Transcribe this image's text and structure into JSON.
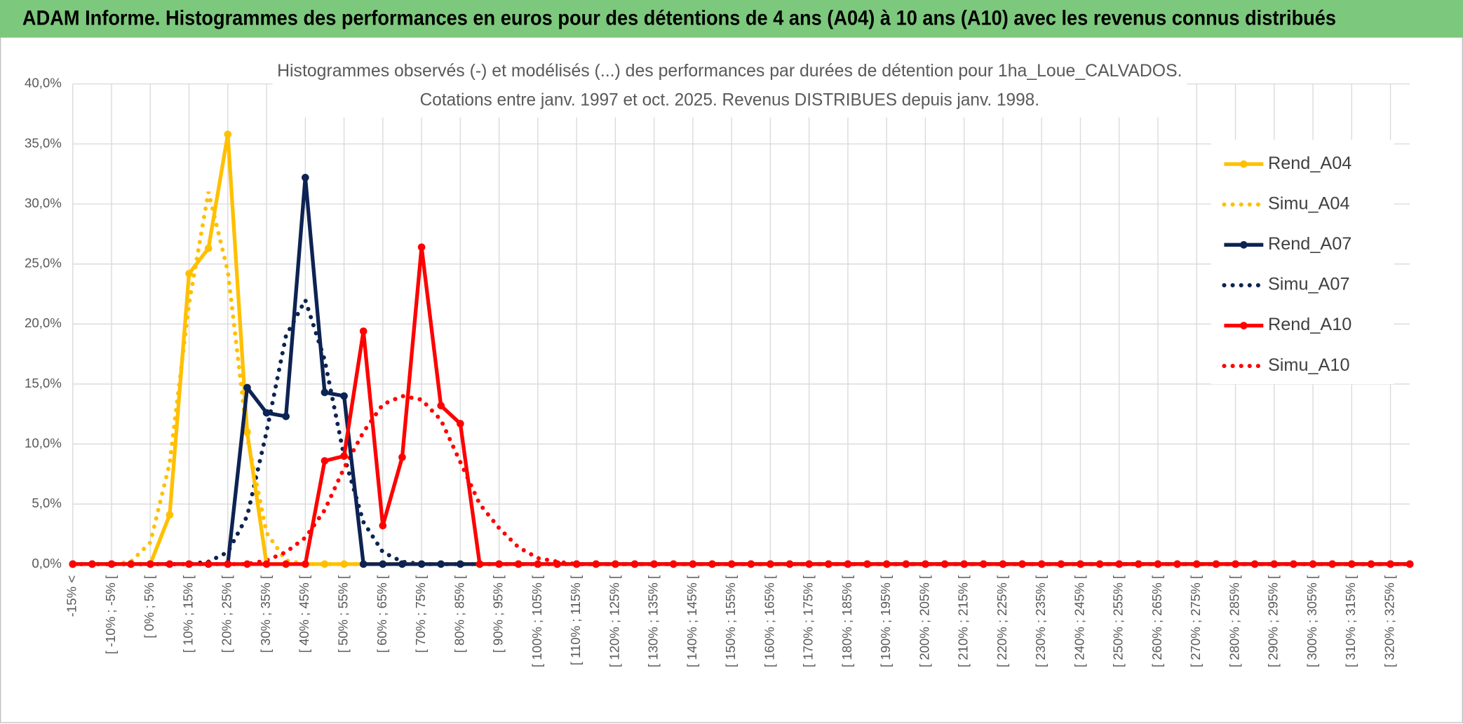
{
  "header": {
    "title": "ADAM Informe. Histogrammes des performances en euros pour des détentions de 4 ans (A04) à 10 ans (A10) avec les revenus connus distribués"
  },
  "chart_data": {
    "type": "line",
    "title": "Histogrammes observés (-) et modélisés (...) des performances par durées de détention pour 1ha_Loue_CALVADOS.",
    "subtitle": "Cotations entre janv. 1997 et oct. 2025. Revenus DISTRIBUES depuis janv. 1998.",
    "categories": [
      "-15% <",
      null,
      "[ -10% ; -5% [",
      null,
      "[ 0% ; 5% [",
      null,
      "[ 10% ; 15% [",
      null,
      "[ 20% ; 25% [",
      null,
      "[ 30% ; 35% [",
      null,
      "[ 40% ; 45% [",
      null,
      "[ 50% ; 55% [",
      null,
      "[ 60% ; 65% [",
      null,
      "[ 70% ; 75% [",
      null,
      "[ 80% ; 85% [",
      null,
      "[ 90% ; 95% [",
      null,
      "[ 100% ; 105% [",
      null,
      "[ 110% ; 115% [",
      null,
      "[ 120% ; 125% [",
      null,
      "[ 130% ; 135% [",
      null,
      "[ 140% ; 145% [",
      null,
      "[ 150% ; 155% [",
      null,
      "[ 160% ; 165% [",
      null,
      "[ 170% ; 175% [",
      null,
      "[ 180% ; 185% [",
      null,
      "[ 190% ; 195% [",
      null,
      "[ 200% ; 205% [",
      null,
      "[ 210% ; 215% [",
      null,
      "[ 220% ; 225% [",
      null,
      "[ 230% ; 235% [",
      null,
      "[ 240% ; 245% [",
      null,
      "[ 250% ; 255% [",
      null,
      "[ 260% ; 265% [",
      null,
      "[ 270% ; 275% [",
      null,
      "[ 280% ; 285% [",
      null,
      "[ 290% ; 295% [",
      null,
      "[ 300% ; 305% [",
      null,
      "[ 310% ; 315% [",
      null,
      "[ 320% ; 325% [",
      null
    ],
    "series": [
      {
        "name": "Rend_A04",
        "color": "#ffc000",
        "style": "solid",
        "markers": true,
        "values": [
          0,
          0,
          0,
          0,
          0,
          4.1,
          24.2,
          26.3,
          35.8,
          11,
          0,
          0,
          0,
          0,
          0,
          0,
          0,
          0,
          0,
          0,
          0,
          0,
          0,
          0,
          0,
          0,
          0,
          0,
          0,
          0,
          0,
          0,
          0,
          0,
          0,
          0,
          0,
          0,
          0,
          0,
          0,
          0,
          0,
          0,
          0,
          0,
          0,
          0,
          0,
          0,
          0,
          0,
          0,
          0,
          0,
          0,
          0,
          0,
          0,
          0,
          0,
          0,
          0,
          0,
          0,
          0,
          0,
          0,
          0,
          0
        ]
      },
      {
        "name": "Simu_A04",
        "color": "#ffc000",
        "style": "dotted",
        "markers": false,
        "values": [
          0,
          0,
          0,
          0.2,
          1.8,
          8.4,
          21.7,
          31,
          24.4,
          10.6,
          2.6,
          0.3,
          0,
          0,
          0,
          0,
          0,
          0,
          0,
          0,
          0,
          0,
          0,
          0,
          0,
          0,
          0,
          0,
          0,
          0,
          0,
          0,
          0,
          0,
          0,
          0,
          0,
          0,
          0,
          0,
          0,
          0,
          0,
          0,
          0,
          0,
          0,
          0,
          0,
          0,
          0,
          0,
          0,
          0,
          0,
          0,
          0,
          0,
          0,
          0,
          0,
          0,
          0,
          0,
          0,
          0,
          0,
          0,
          0,
          0
        ]
      },
      {
        "name": "Rend_A07",
        "color": "#0d2353",
        "style": "solid",
        "markers": true,
        "values": [
          0,
          0,
          0,
          0,
          0,
          0,
          0,
          0,
          0,
          14.7,
          12.6,
          12.3,
          32.2,
          14.3,
          14,
          0,
          0,
          0,
          0,
          0,
          0,
          0,
          0,
          0,
          0,
          0,
          0,
          0,
          0,
          0,
          0,
          0,
          0,
          0,
          0,
          0,
          0,
          0,
          0,
          0,
          0,
          0,
          0,
          0,
          0,
          0,
          0,
          0,
          0,
          0,
          0,
          0,
          0,
          0,
          0,
          0,
          0,
          0,
          0,
          0,
          0,
          0,
          0,
          0,
          0,
          0,
          0,
          0,
          0,
          0
        ]
      },
      {
        "name": "Simu_A07",
        "color": "#0d2353",
        "style": "dotted",
        "markers": false,
        "values": [
          0,
          0,
          0,
          0,
          0,
          0,
          0,
          0.2,
          1,
          4,
          11,
          19,
          22,
          17,
          9,
          3.5,
          1,
          0.2,
          0,
          0,
          0,
          0,
          0,
          0,
          0,
          0,
          0,
          0,
          0,
          0,
          0,
          0,
          0,
          0,
          0,
          0,
          0,
          0,
          0,
          0,
          0,
          0,
          0,
          0,
          0,
          0,
          0,
          0,
          0,
          0,
          0,
          0,
          0,
          0,
          0,
          0,
          0,
          0,
          0,
          0,
          0,
          0,
          0,
          0,
          0,
          0,
          0,
          0,
          0,
          0
        ]
      },
      {
        "name": "Rend_A10",
        "color": "#ff0000",
        "style": "solid",
        "markers": true,
        "values": [
          0,
          0,
          0,
          0,
          0,
          0,
          0,
          0,
          0,
          0,
          0,
          0,
          0,
          8.6,
          9,
          19.4,
          3.2,
          8.9,
          26.4,
          13.2,
          11.7,
          0,
          0,
          0,
          0,
          0,
          0,
          0,
          0,
          0,
          0,
          0,
          0,
          0,
          0,
          0,
          0,
          0,
          0,
          0,
          0,
          0,
          0,
          0,
          0,
          0,
          0,
          0,
          0,
          0,
          0,
          0,
          0,
          0,
          0,
          0,
          0,
          0,
          0,
          0,
          0,
          0,
          0,
          0,
          0,
          0,
          0,
          0,
          0,
          0
        ]
      },
      {
        "name": "Simu_A10",
        "color": "#ff0000",
        "style": "dotted",
        "markers": false,
        "values": [
          0,
          0,
          0,
          0,
          0,
          0,
          0,
          0,
          0,
          0,
          0.3,
          1,
          2.2,
          4.5,
          8,
          11,
          13.3,
          14,
          13.7,
          12,
          8.5,
          5,
          3,
          1.4,
          0.5,
          0.2,
          0,
          0,
          0,
          0,
          0,
          0,
          0,
          0,
          0,
          0,
          0,
          0,
          0,
          0,
          0,
          0,
          0,
          0,
          0,
          0,
          0,
          0,
          0,
          0,
          0,
          0,
          0,
          0,
          0,
          0,
          0,
          0,
          0,
          0,
          0,
          0,
          0,
          0,
          0,
          0,
          0,
          0,
          0,
          0
        ]
      }
    ],
    "ylim": [
      0,
      40
    ],
    "yticks": [
      {
        "value": 0,
        "label": "0,0%"
      },
      {
        "value": 5,
        "label": "5,0%"
      },
      {
        "value": 10,
        "label": "10,0%"
      },
      {
        "value": 15,
        "label": "15,0%"
      },
      {
        "value": 20,
        "label": "20,0%"
      },
      {
        "value": 25,
        "label": "25,0%"
      },
      {
        "value": 30,
        "label": "30,0%"
      },
      {
        "value": 35,
        "label": "35,0%"
      },
      {
        "value": 40,
        "label": "40,0%"
      }
    ],
    "grid": true,
    "legend": "right"
  }
}
